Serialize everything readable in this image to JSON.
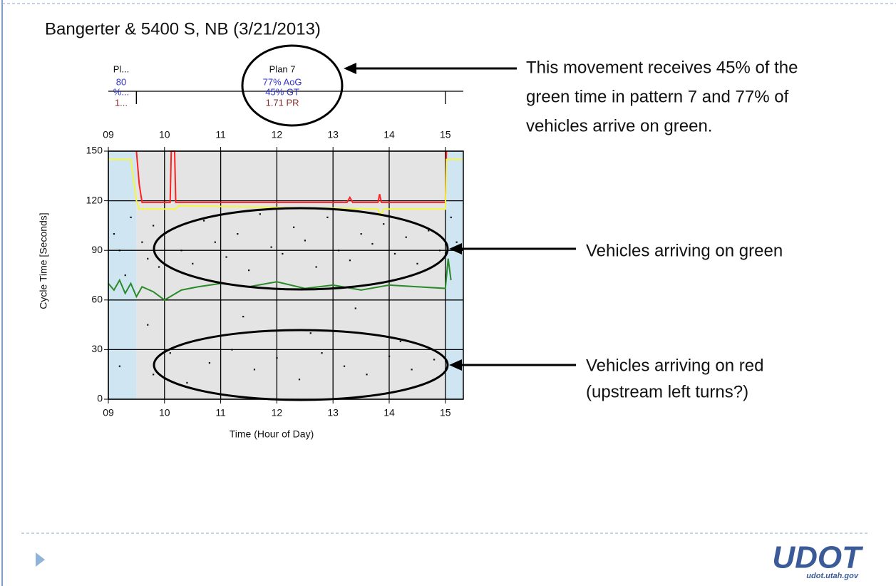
{
  "slide_title": "Bangerter & 5400 S, NB (3/21/2013)",
  "annotations": {
    "plan": [
      "This movement receives 45% of the",
      "green time in pattern 7 and 77% of",
      "vehicles arrive on green."
    ],
    "green": [
      "Vehicles arriving on green"
    ],
    "red": [
      "Vehicles arriving on red",
      "(upstream left turns?)"
    ]
  },
  "logo": {
    "name": "UDOT",
    "url": "udot.utah.gov"
  },
  "chart_data": {
    "type": "scatter",
    "xlabel": "Time (Hour of Day)",
    "ylabel": "Cycle Time [Seconds]",
    "xlim": [
      9,
      15.32
    ],
    "ylim": [
      0,
      150
    ],
    "xticks": [
      {
        "value": 9,
        "label": "09"
      },
      10,
      11,
      12,
      13,
      14,
      15
    ],
    "yticks": [
      0,
      30,
      60,
      90,
      120,
      150
    ],
    "grid": true,
    "color": "#111111",
    "x": [
      9.1,
      9.2,
      9.3,
      9.4,
      9.6,
      9.7,
      9.8,
      9.9,
      10.0,
      10.3,
      10.5,
      10.7,
      10.9,
      11.1,
      11.3,
      11.5,
      11.7,
      11.9,
      12.1,
      12.3,
      12.5,
      12.7,
      12.9,
      13.1,
      13.3,
      13.5,
      13.7,
      13.9,
      14.1,
      14.3,
      14.5,
      14.7,
      14.9,
      15.1,
      15.2,
      9.2,
      9.8,
      10.1,
      10.4,
      10.8,
      11.2,
      11.6,
      12.0,
      12.4,
      12.8,
      13.2,
      13.6,
      14.0,
      14.4,
      14.8,
      9.7,
      11.4,
      12.6,
      13.4,
      14.2
    ],
    "values": [
      100,
      90,
      75,
      110,
      95,
      85,
      105,
      80,
      100,
      90,
      82,
      108,
      95,
      86,
      100,
      78,
      112,
      92,
      88,
      104,
      96,
      80,
      110,
      90,
      84,
      100,
      94,
      106,
      88,
      98,
      82,
      102,
      90,
      110,
      95,
      20,
      15,
      28,
      10,
      22,
      30,
      18,
      25,
      12,
      28,
      20,
      15,
      26,
      18,
      24,
      45,
      50,
      40,
      55,
      35
    ],
    "regions": [
      {
        "x": [
          9,
          9.5
        ],
        "color": "#cfe6f2"
      },
      {
        "x": [
          9.5,
          15
        ],
        "color": "#e4e4e4"
      },
      {
        "x": [
          15,
          15.32
        ],
        "color": "#cfe6f2"
      }
    ],
    "lines": [
      {
        "color": "#ff2020",
        "x": [
          9.5,
          9.55,
          9.6,
          10.1,
          10.12,
          10.18,
          10.2,
          10.25,
          13.25,
          13.3,
          13.35,
          13.8,
          13.83,
          13.86,
          15,
          15.02
        ],
        "values": [
          150,
          130,
          119,
          119,
          150,
          150,
          119,
          119,
          119,
          122,
          119,
          119,
          124,
          119,
          119,
          150
        ]
      },
      {
        "color": "#f5f542",
        "x": [
          9,
          9.4,
          9.5,
          9.55,
          10.2,
          10.25,
          13.8,
          13.85,
          13.9,
          15,
          15.02,
          15.3
        ],
        "values": [
          145,
          145,
          120,
          115,
          115,
          117,
          115,
          111,
          115,
          115,
          145,
          145
        ]
      },
      {
        "color": "#2a8a2a",
        "x": [
          9,
          9.1,
          9.2,
          9.3,
          9.4,
          9.5,
          9.6,
          9.8,
          10,
          10.3,
          10.6,
          11,
          11.5,
          12,
          12.5,
          13,
          13.5,
          14,
          14.5,
          15,
          15.05,
          15.1
        ],
        "values": [
          70,
          66,
          72,
          64,
          70,
          62,
          68,
          65,
          60,
          66,
          68,
          70,
          68,
          71,
          67,
          69,
          66,
          69,
          68,
          67,
          85,
          72
        ]
      }
    ],
    "plans": [
      {
        "start": 9,
        "end": 9.5,
        "labels": [
          "Pl...",
          "80",
          "%...",
          "1..."
        ]
      },
      {
        "start": 9.5,
        "end": 15,
        "labels": [
          "Plan 7",
          "77% AoG",
          "45% GT",
          "1.71 PR"
        ]
      }
    ]
  }
}
